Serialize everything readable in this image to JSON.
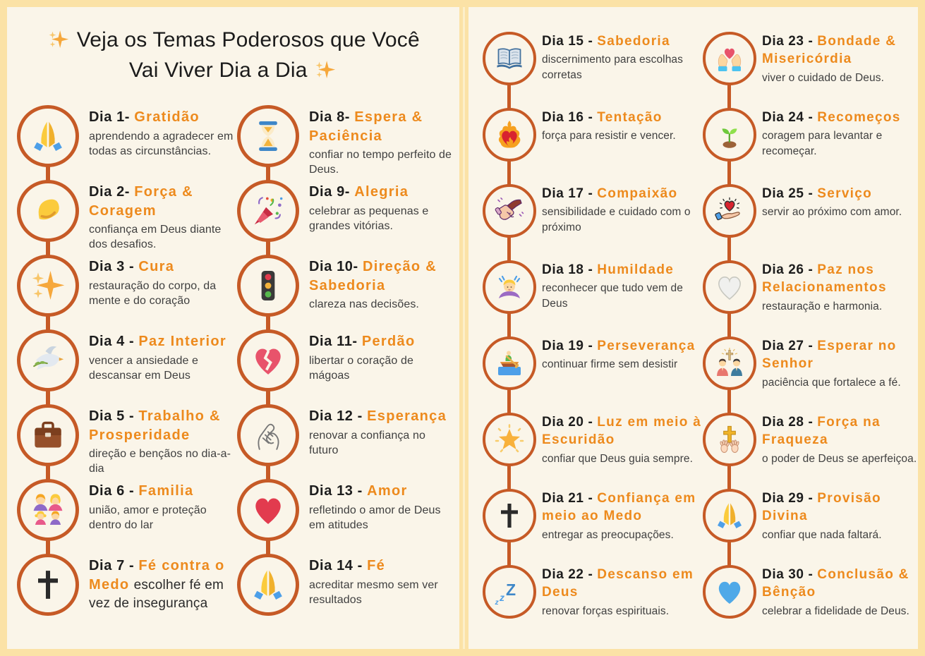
{
  "colors": {
    "page_background": "#FBE2A6",
    "panel_background": "#FAF5E9",
    "timeline_and_circle_border": "#C65A26",
    "theme_orange": "#ED8A1D",
    "day_label_color": "#1D1D1D",
    "description_color": "#404040"
  },
  "header": {
    "title": "Veja os Temas Poderosos que Você Vai Viver Dia a Dia",
    "leading_icon": "sparkles",
    "trailing_icon": "sparkles"
  },
  "panels": [
    {
      "id": "left",
      "has_header": true,
      "columns": [
        [
          {
            "day": 1,
            "label": "Dia 1-",
            "theme": "Gratidão",
            "desc": "aprendendo a agradecer em todas as circunstâncias.",
            "icon": "folded-hands"
          },
          {
            "day": 2,
            "label": "Dia 2-",
            "theme": "Força & Coragem",
            "desc": "confiança em Deus diante dos desafios.",
            "icon": "flexed-biceps"
          },
          {
            "day": 3,
            "label": "Dia 3 -",
            "theme": "Cura",
            "desc": "restauração do corpo, da mente e do coração",
            "icon": "sparkles"
          },
          {
            "day": 4,
            "label": "Dia 4 -",
            "theme": "Paz Interior",
            "desc": "vencer a ansiedade e descansar em Deus",
            "icon": "dove"
          },
          {
            "day": 5,
            "label": "Dia 5 -",
            "theme": "Trabalho & Prosperidade",
            "desc": "direção e bençãos no dia-a-dia",
            "icon": "briefcase"
          },
          {
            "day": 6,
            "label": "Dia 6 -",
            "theme": "Familia",
            "desc": "união, amor e proteção dentro do lar",
            "icon": "family"
          },
          {
            "day": 7,
            "label": "Dia 7 -",
            "theme": "Fé contra o Medo",
            "desc": "escolher fé em vez de insegurança",
            "icon": "cross",
            "inline_desc": true
          }
        ],
        [
          {
            "day": 8,
            "label": "Dia 8-",
            "theme": "Espera & Paciência",
            "desc": "confiar no tempo perfeito de Deus.",
            "icon": "hourglass"
          },
          {
            "day": 9,
            "label": "Dia 9-",
            "theme": "Alegria",
            "desc": "celebrar as pequenas e grandes vitórias.",
            "icon": "party-popper"
          },
          {
            "day": 10,
            "label": "Dia 10-",
            "theme": "Direção & Sabedoria",
            "desc": "clareza nas decisões.",
            "icon": "traffic-light"
          },
          {
            "day": 11,
            "label": "Dia 11-",
            "theme": "Perdão",
            "desc": "libertar o coração de mágoas",
            "icon": "broken-heart"
          },
          {
            "day": 12,
            "label": "Dia 12 -",
            "theme": "Esperança",
            "desc": "renovar a confiança no futuro",
            "icon": "clasped-hands"
          },
          {
            "day": 13,
            "label": "Dia 13 -",
            "theme": "Amor",
            "desc": "refletindo o amor de Deus em atitudes",
            "icon": "red-heart"
          },
          {
            "day": 14,
            "label": "Dia 14 -",
            "theme": "Fé",
            "desc": "acreditar mesmo sem ver resultados",
            "icon": "folded-hands"
          }
        ]
      ]
    },
    {
      "id": "right",
      "has_header": false,
      "columns": [
        [
          {
            "day": 15,
            "label": "Dia 15 -",
            "theme": "Sabedoria",
            "desc": "discernimento para escolhas corretas",
            "icon": "open-book"
          },
          {
            "day": 16,
            "label": "Dia 16 -",
            "theme": "Tentação",
            "desc": "força para resistir e vencer.",
            "icon": "heart-on-fire"
          },
          {
            "day": 17,
            "label": "Dia 17 -",
            "theme": "Compaixão",
            "desc": "sensibilidade e cuidado com o próximo",
            "icon": "handshake"
          },
          {
            "day": 18,
            "label": "Dia 18 -",
            "theme": "Humildade",
            "desc": "reconhecer que tudo vem de Deus",
            "icon": "bowing-person"
          },
          {
            "day": 19,
            "label": "Dia 19 -",
            "theme": "Perseverança",
            "desc": "continuar firme sem desistir",
            "icon": "rowing-boat"
          },
          {
            "day": 20,
            "label": "Dia 20 -",
            "theme": "Luz em meio à Escuridão",
            "desc": "confiar que Deus guia sempre.",
            "icon": "glowing-star"
          },
          {
            "day": 21,
            "label": "Dia 21 -",
            "theme": "Confiança em meio ao Medo",
            "desc": "entregar as preocupações.",
            "icon": "cross"
          },
          {
            "day": 22,
            "label": "Dia 22 -",
            "theme": "Descanso em Deus",
            "desc": "renovar forças espirituais.",
            "icon": "zzz"
          }
        ],
        [
          {
            "day": 23,
            "label": "Dia 23 -",
            "theme": "Bondade & Misericórdia",
            "desc": "viver o cuidado de Deus.",
            "icon": "hands-holding-heart"
          },
          {
            "day": 24,
            "label": "Dia 24 -",
            "theme": "Recomeços",
            "desc": "coragem para levantar e recomeçar.",
            "icon": "seedling"
          },
          {
            "day": 25,
            "label": "Dia 25 -",
            "theme": "Serviço",
            "desc": "servir ao próximo com amor.",
            "icon": "hand-serving-heart"
          },
          {
            "day": 26,
            "label": "Dia 26 -",
            "theme": "Paz nos Relacionamentos",
            "desc": "restauração e harmonia.",
            "icon": "white-heart"
          },
          {
            "day": 27,
            "label": "Dia 27 -",
            "theme": "Esperar no Senhor",
            "desc": "paciência que fortalece a fé.",
            "icon": "praying-people"
          },
          {
            "day": 28,
            "label": "Dia 28 -",
            "theme": "Força na Fraqueza",
            "desc": "o poder de Deus se aperfeiçoa.",
            "icon": "hands-raised-cross"
          },
          {
            "day": 29,
            "label": "Dia 29 -",
            "theme": "Provisão Divina",
            "desc": "confiar que nada faltará.",
            "icon": "folded-hands"
          },
          {
            "day": 30,
            "label": "Dia 30 -",
            "theme": "Conclusão & Bênção",
            "desc": "celebrar a fidelidade de Deus.",
            "icon": "blue-heart"
          }
        ]
      ]
    }
  ]
}
